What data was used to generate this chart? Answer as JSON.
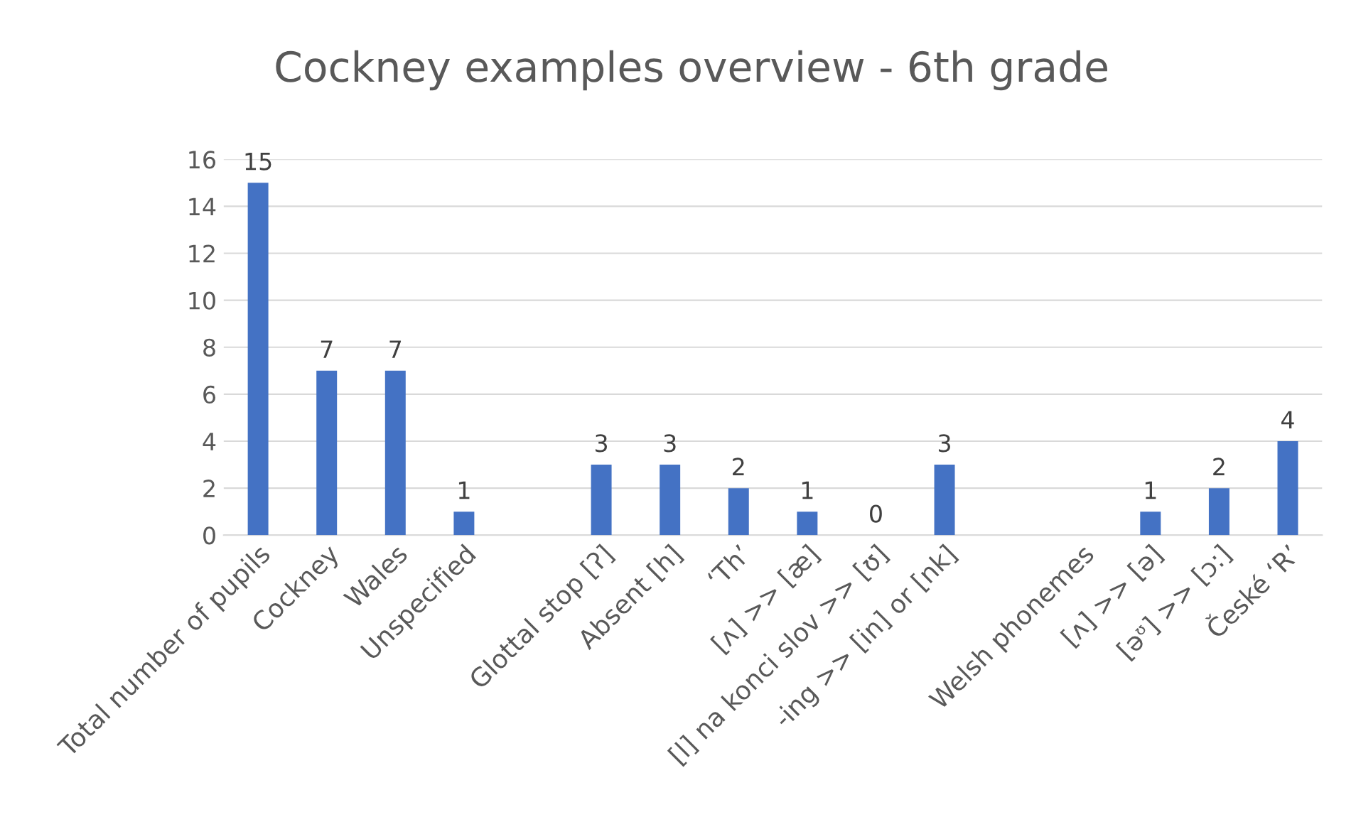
{
  "chart_data": {
    "type": "bar",
    "title": "Cockney examples overview - 6th grade",
    "categories": [
      "Total number of pupils",
      "Cockney",
      "Wales",
      "Unspecified",
      null,
      "Glottal stop [ʔ]",
      "Absent [h]",
      "‘Th’",
      "[ʌ] >> [æ]",
      "[l] na konci slov >> [ʊ]",
      "-ing >> [in] or [nk]",
      null,
      "Welsh phonemes",
      "[ʌ] >> [ə]",
      "[əᶷ] >> [ɔ:]",
      "České ‘R’"
    ],
    "values": [
      15,
      7,
      7,
      1,
      null,
      3,
      3,
      2,
      1,
      0,
      3,
      null,
      null,
      1,
      2,
      4
    ],
    "color": "#4472c4",
    "ylim": [
      0,
      16
    ],
    "yticks": [
      0,
      2,
      4,
      6,
      8,
      10,
      12,
      14,
      16
    ],
    "grid": "y",
    "data_labels": true
  }
}
